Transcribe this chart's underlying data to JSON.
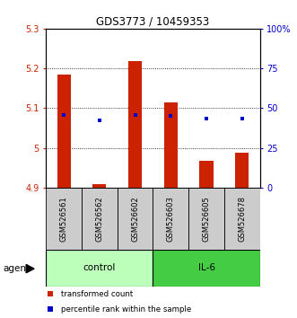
{
  "title": "GDS3773 / 10459353",
  "samples": [
    "GSM526561",
    "GSM526562",
    "GSM526602",
    "GSM526603",
    "GSM526605",
    "GSM526678"
  ],
  "bar_values": [
    5.185,
    4.908,
    5.218,
    5.115,
    4.968,
    4.988
  ],
  "bar_base": 4.9,
  "blue_y_left": [
    5.083,
    5.07,
    5.083,
    5.08,
    5.073,
    5.073
  ],
  "ylim": [
    4.9,
    5.3
  ],
  "y2lim": [
    0,
    100
  ],
  "yticks": [
    4.9,
    5.0,
    5.1,
    5.2,
    5.3
  ],
  "ytick_labels": [
    "4.9",
    "5",
    "5.1",
    "5.2",
    "5.3"
  ],
  "y2ticks": [
    0,
    25,
    50,
    75,
    100
  ],
  "y2ticklabels": [
    "0",
    "25",
    "50",
    "75",
    "100%"
  ],
  "grid_lines": [
    5.0,
    5.1,
    5.2
  ],
  "bar_color": "#cc2200",
  "blue_color": "#0000cc",
  "control_color": "#bbffbb",
  "il6_color": "#44cc44",
  "label_bg_color": "#cccccc",
  "legend_red_label": "transformed count",
  "legend_blue_label": "percentile rank within the sample"
}
